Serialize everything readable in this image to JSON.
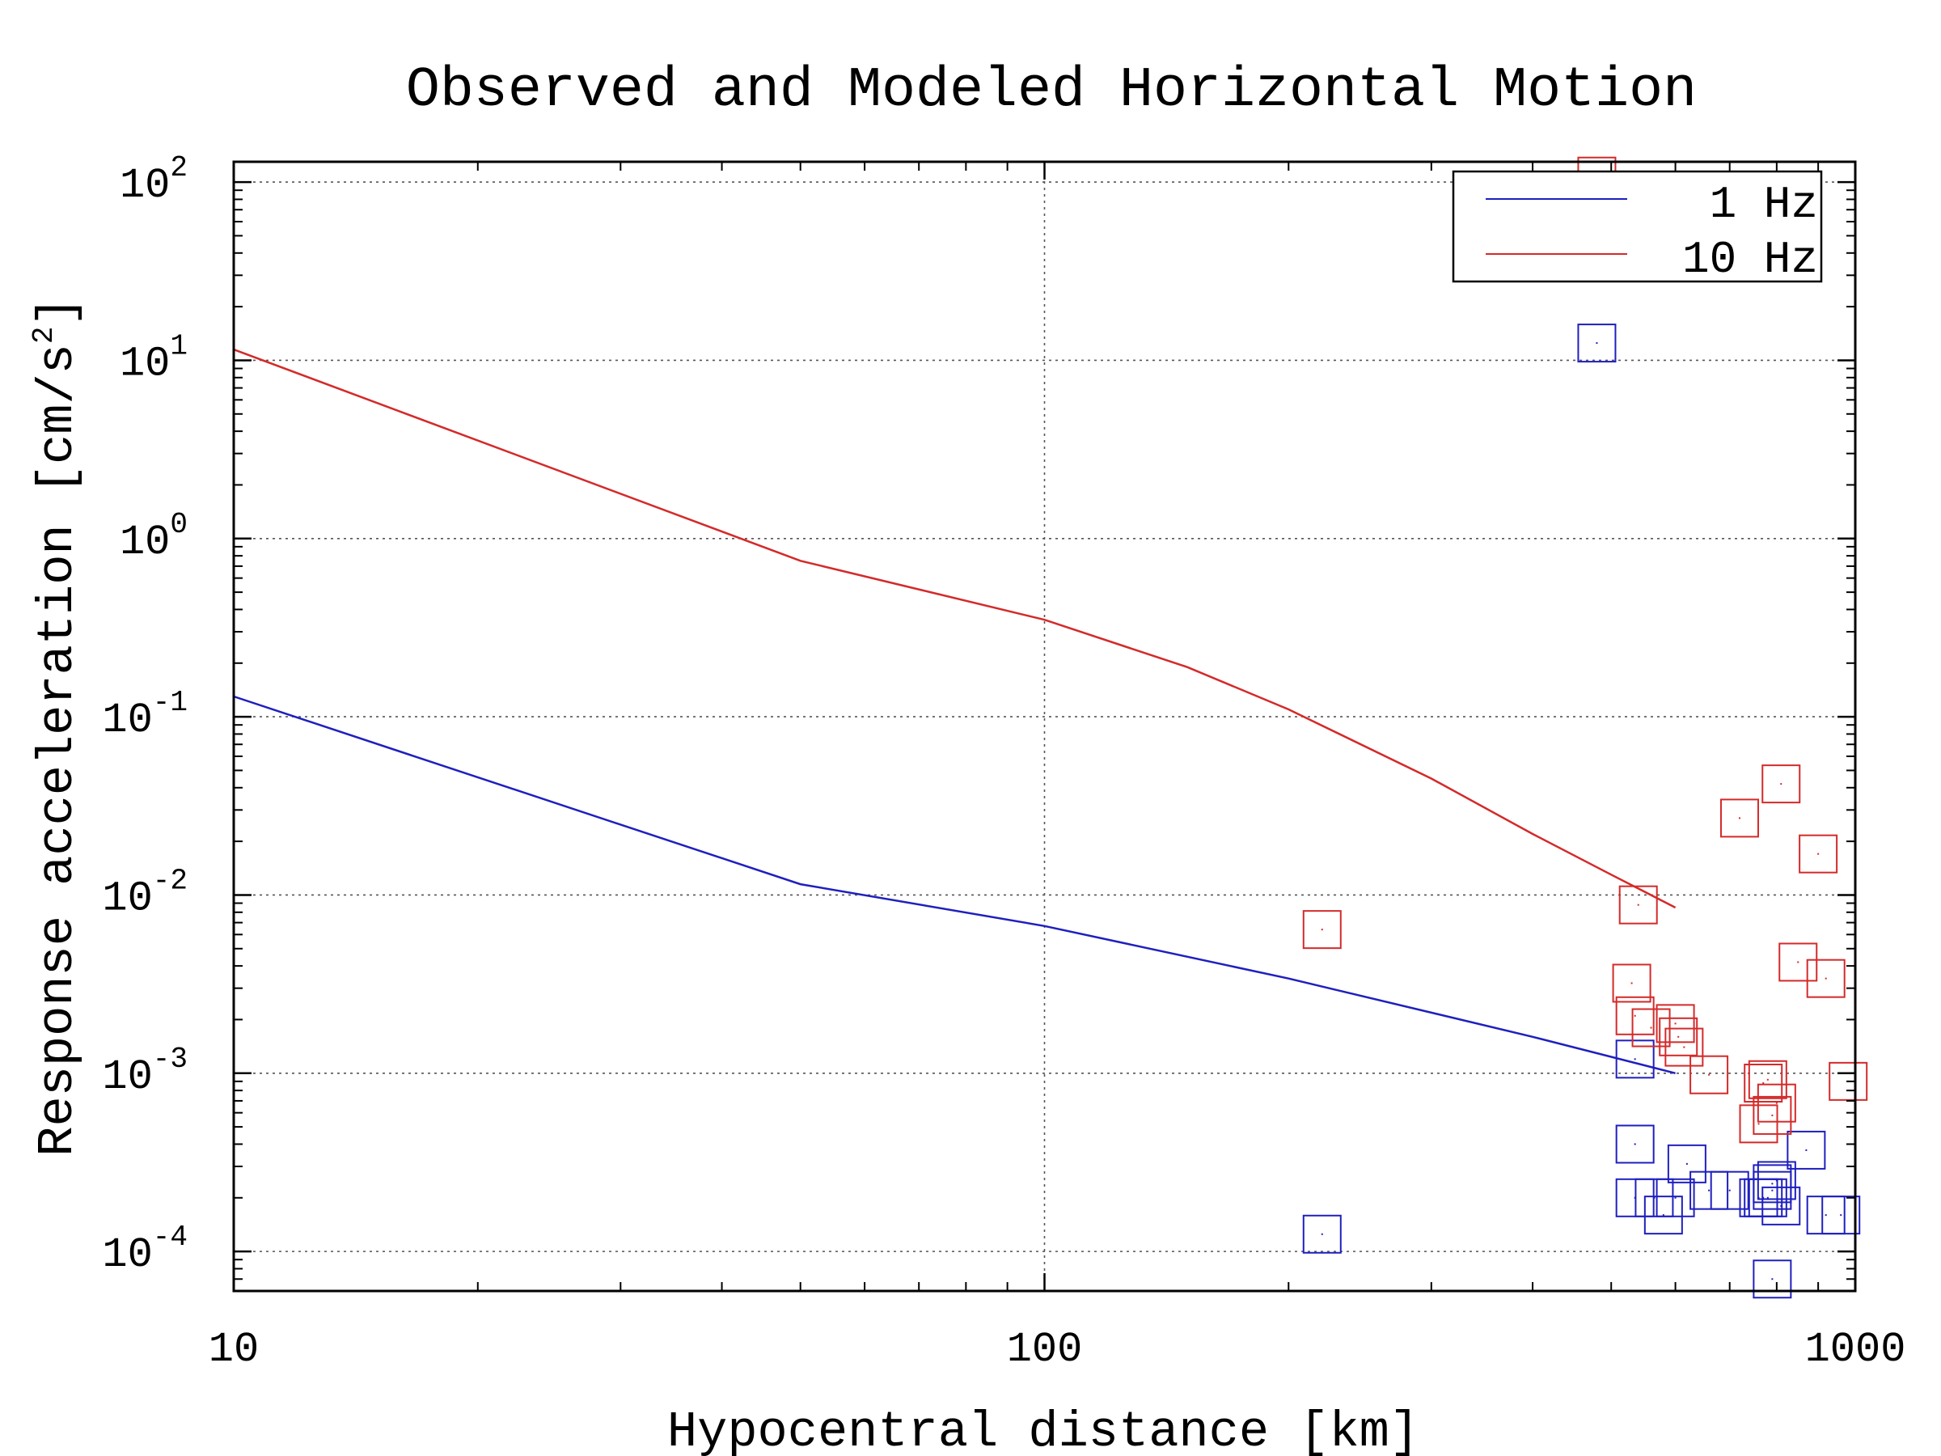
{
  "chart_data": {
    "type": "scatter",
    "title": "Observed and Modeled Horizontal Motion",
    "xlabel": "Hypocentral distance [km]",
    "ylabel": "Response acceleration [cm/s",
    "ylabel_sup": "2",
    "ylabel_end": "]",
    "xscale": "log",
    "yscale": "log",
    "xlim": [
      10,
      1000
    ],
    "ylim": [
      6e-05,
      130
    ],
    "grid": true,
    "legend_position": "top-right",
    "x_ticks": [
      {
        "value": 10,
        "label": "10"
      },
      {
        "value": 100,
        "label": "100"
      },
      {
        "value": 1000,
        "label": "1000"
      }
    ],
    "y_ticks": [
      {
        "value": 0.0001,
        "base": "10",
        "exp": "-4"
      },
      {
        "value": 0.001,
        "base": "10",
        "exp": "-3"
      },
      {
        "value": 0.01,
        "base": "10",
        "exp": "-2"
      },
      {
        "value": 0.1,
        "base": "10",
        "exp": "-1"
      },
      {
        "value": 1,
        "base": "10",
        "exp": "0"
      },
      {
        "value": 10,
        "base": "10",
        "exp": "1"
      },
      {
        "value": 100,
        "base": "10",
        "exp": "2"
      }
    ],
    "series": [
      {
        "name": "1 Hz",
        "color": "#1f1fbf",
        "line": {
          "x": [
            10,
            50,
            100,
            200,
            400,
            600
          ],
          "y": [
            0.13,
            0.0115,
            0.0067,
            0.0034,
            0.0016,
            0.001
          ]
        },
        "points": {
          "x": [
            220,
            480,
            535,
            535,
            535,
            565,
            580,
            600,
            620,
            660,
            700,
            760,
            770,
            780,
            790,
            790,
            800,
            810,
            870,
            920,
            960,
            790
          ],
          "y": [
            0.000125,
            12.5,
            0.0012,
            0.0004,
            0.0002,
            0.0002,
            0.00016,
            0.0002,
            0.00031,
            0.00022,
            0.00022,
            0.0002,
            0.0002,
            0.0002,
            0.00022,
            0.00024,
            0.00025,
            0.00018,
            0.00037,
            0.00016,
            0.00016,
            7e-05
          ]
        }
      },
      {
        "name": "10 Hz",
        "color": "#d42a2a",
        "line": {
          "x": [
            10,
            50,
            100,
            150,
            200,
            300,
            400,
            500,
            600
          ],
          "y": [
            11.5,
            0.75,
            0.35,
            0.19,
            0.11,
            0.045,
            0.022,
            0.013,
            0.0085
          ]
        },
        "points": {
          "x": [
            220,
            480,
            540,
            530,
            535,
            560,
            600,
            605,
            615,
            660,
            720,
            760,
            770,
            780,
            790,
            800,
            810,
            850,
            900,
            920,
            980
          ],
          "y": [
            0.0064,
            108,
            0.0088,
            0.0032,
            0.0021,
            0.0018,
            0.0019,
            0.0016,
            0.0014,
            0.00098,
            0.027,
            0.00052,
            0.00088,
            0.00092,
            0.00058,
            0.00068,
            0.042,
            0.0042,
            0.017,
            0.0034,
            0.0009
          ]
        }
      }
    ]
  }
}
